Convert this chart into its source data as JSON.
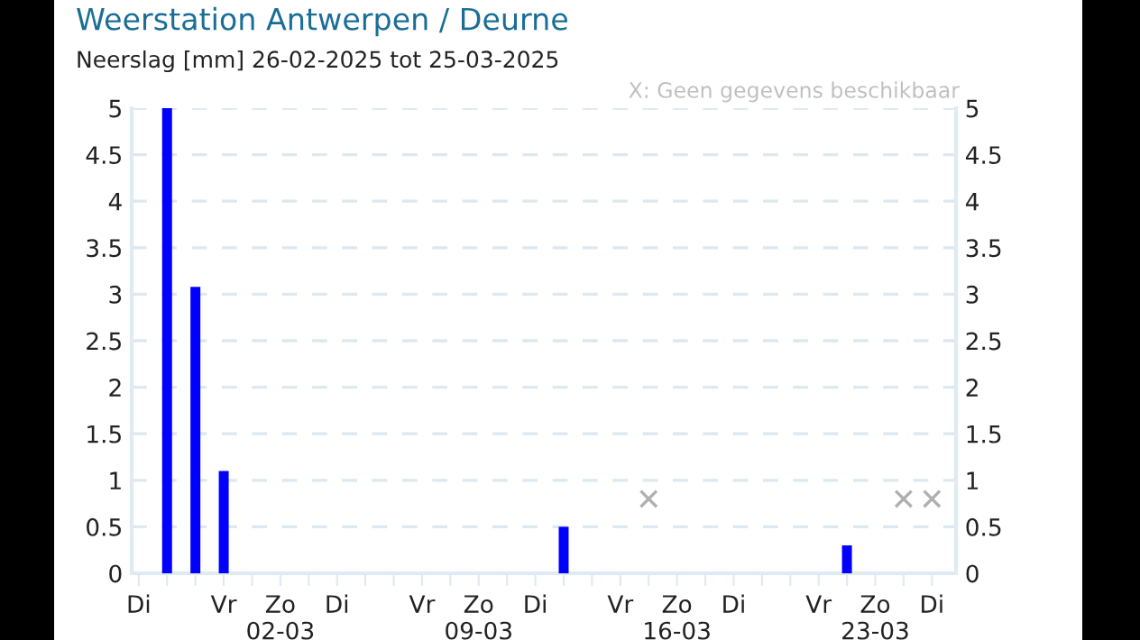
{
  "chart_data": {
    "type": "bar",
    "title": "Weerstation Antwerpen / Deurne",
    "subtitle": "Neerslag [mm] 26-02-2025 tot 25-03-2025",
    "annotations": [
      "X: Geen gegevens beschikbaar"
    ],
    "categories": [
      "Di",
      null,
      null,
      "Vr",
      null,
      "Zo\n02-03",
      null,
      "Di",
      null,
      null,
      "Vr",
      null,
      "Zo\n09-03",
      null,
      "Di",
      null,
      null,
      "Vr",
      null,
      "Zo\n16-03",
      null,
      "Di",
      null,
      null,
      "Vr",
      null,
      "Zo\n23-03",
      null,
      "Di"
    ],
    "series": [
      {
        "color": "#0000ff",
        "values": [
          0,
          5,
          3.08,
          1.1,
          0,
          0,
          0,
          0,
          0,
          0,
          0,
          0,
          0,
          0,
          0,
          0.5,
          0,
          0,
          null,
          0,
          0,
          0,
          0,
          0,
          0,
          0.3,
          0,
          null,
          null
        ]
      },
      {
        "type": "scatter",
        "color": "#b0b0b0",
        "marker": "cross",
        "values": [
          null,
          null,
          null,
          null,
          null,
          null,
          null,
          null,
          null,
          null,
          null,
          null,
          null,
          null,
          null,
          null,
          null,
          null,
          0.8,
          null,
          null,
          null,
          null,
          null,
          null,
          null,
          null,
          0.8,
          0.8
        ]
      }
    ],
    "ylim": [
      0,
      5
    ],
    "yticks": [
      0,
      0.5,
      1,
      1.5,
      2,
      2.5,
      3,
      3.5,
      4,
      4.5,
      5
    ],
    "y2lim": [
      0,
      5
    ],
    "y2ticks": [
      0,
      0.5,
      1,
      1.5,
      2,
      2.5,
      3,
      3.5,
      4,
      4.5,
      5
    ],
    "grid": "y",
    "legend": false
  }
}
